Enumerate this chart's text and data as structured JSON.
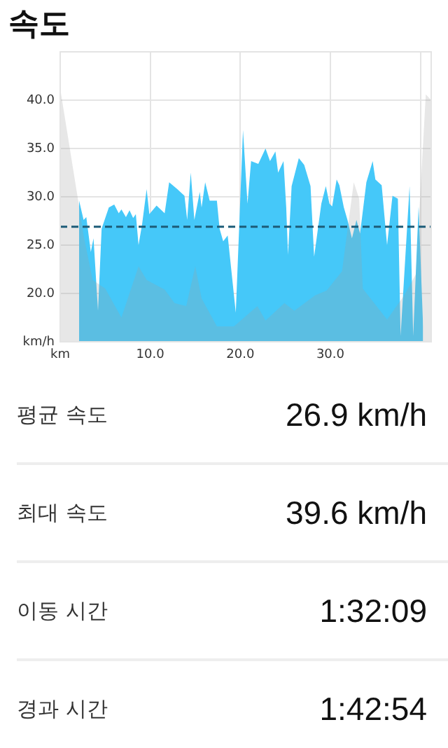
{
  "chart_data": {
    "type": "area",
    "title": "속도",
    "xlim": [
      0,
      41.2
    ],
    "xticks": [
      {
        "value": 0,
        "label": "km"
      },
      {
        "value": 10,
        "label": "10.0"
      },
      {
        "value": 20,
        "label": "20.0"
      },
      {
        "value": 30,
        "label": "30.0"
      },
      {
        "value": 40,
        "label": null
      }
    ],
    "ylim": [
      15,
      45
    ],
    "yticks": [
      {
        "value": 15,
        "label": "km/h"
      },
      {
        "value": 20,
        "label": "20.0"
      },
      {
        "value": 25,
        "label": "25.0"
      },
      {
        "value": 30,
        "label": "30.0"
      },
      {
        "value": 35,
        "label": "35.0"
      },
      {
        "value": 40,
        "label": "40.0"
      }
    ],
    "grid": true,
    "legend": false,
    "marker": "none",
    "series": [
      {
        "color": "#45c8f9",
        "x": [
          2.1,
          2.6,
          2.9,
          3.4,
          3.7,
          4.2,
          4.6,
          5.4,
          6.0,
          6.5,
          6.8,
          7.3,
          7.7,
          8.1,
          8.4,
          8.7,
          9.1,
          9.6,
          9.9,
          10.7,
          11.6,
          12.1,
          13.0,
          13.8,
          14.1,
          14.5,
          14.9,
          15.5,
          15.7,
          16.1,
          16.6,
          17.4,
          17.7,
          18.1,
          18.6,
          19.5,
          20.3,
          20.8,
          21.2,
          22.0,
          22.8,
          23.3,
          23.9,
          24.2,
          24.8,
          25.1,
          25.3,
          25.7,
          26.5,
          27.1,
          27.8,
          28.2,
          29.0,
          29.5,
          29.9,
          30.2,
          30.7,
          31.0,
          31.5,
          31.9,
          32.4,
          32.9,
          33.3,
          34.0,
          34.7,
          35.0,
          35.7,
          36.3,
          36.9,
          37.5,
          37.8,
          38.8,
          39.2,
          39.8,
          40.3
        ],
        "values": [
          29.6,
          27.6,
          27.9,
          24.3,
          25.7,
          18.2,
          26.7,
          28.9,
          29.2,
          28.3,
          28.7,
          27.9,
          28.6,
          27.8,
          28.2,
          25.0,
          27.2,
          30.8,
          28.2,
          29.1,
          28.3,
          31.5,
          30.8,
          30.1,
          27.6,
          32.5,
          27.6,
          30.5,
          28.9,
          31.5,
          29.6,
          29.6,
          26.7,
          25.4,
          26.0,
          18.0,
          36.9,
          29.3,
          33.7,
          33.4,
          35.0,
          33.7,
          34.7,
          32.5,
          33.7,
          28.9,
          24.0,
          31.1,
          34.0,
          33.3,
          31.1,
          23.8,
          29.3,
          31.1,
          29.3,
          29.0,
          31.8,
          31.2,
          28.9,
          27.6,
          25.7,
          27.6,
          26.2,
          31.5,
          33.7,
          31.8,
          31.2,
          25.0,
          30.1,
          29.8,
          15.6,
          31.1,
          15.6,
          29.0,
          16.6
        ]
      },
      {
        "color": "#9e9e9e",
        "x": [
          0,
          2.1,
          2.6,
          3.6,
          5.0,
          6.8,
          8.7,
          9.6,
          11.6,
          12.7,
          14.0,
          15.0,
          15.7,
          17.4,
          19.3,
          21.9,
          22.8,
          24.9,
          26.0,
          28.3,
          29.6,
          31.3,
          32.6,
          33.2,
          33.6,
          36.3,
          38.2,
          39.5,
          40.6,
          41.2
        ],
        "values": [
          41.2,
          29,
          26,
          21.4,
          20.5,
          17.5,
          22.8,
          21.4,
          20.4,
          19,
          18.7,
          22.8,
          19.5,
          16.6,
          16.6,
          18.7,
          17.2,
          19,
          18.2,
          19.8,
          20.3,
          22.3,
          31.5,
          29.8,
          20.5,
          17.3,
          19.8,
          22,
          40.6,
          40
        ]
      }
    ],
    "ref_lines": [
      {
        "axis": "y",
        "value": 26.9,
        "color": "#1d5c78",
        "line_style": "dashed"
      }
    ],
    "annotations": [
      "평균 속도",
      "26.9 km/h",
      "최대 속도",
      "39.6 km/h",
      "이동 시간",
      "1:32:09",
      "경과 시간",
      "1:42:54"
    ]
  }
}
